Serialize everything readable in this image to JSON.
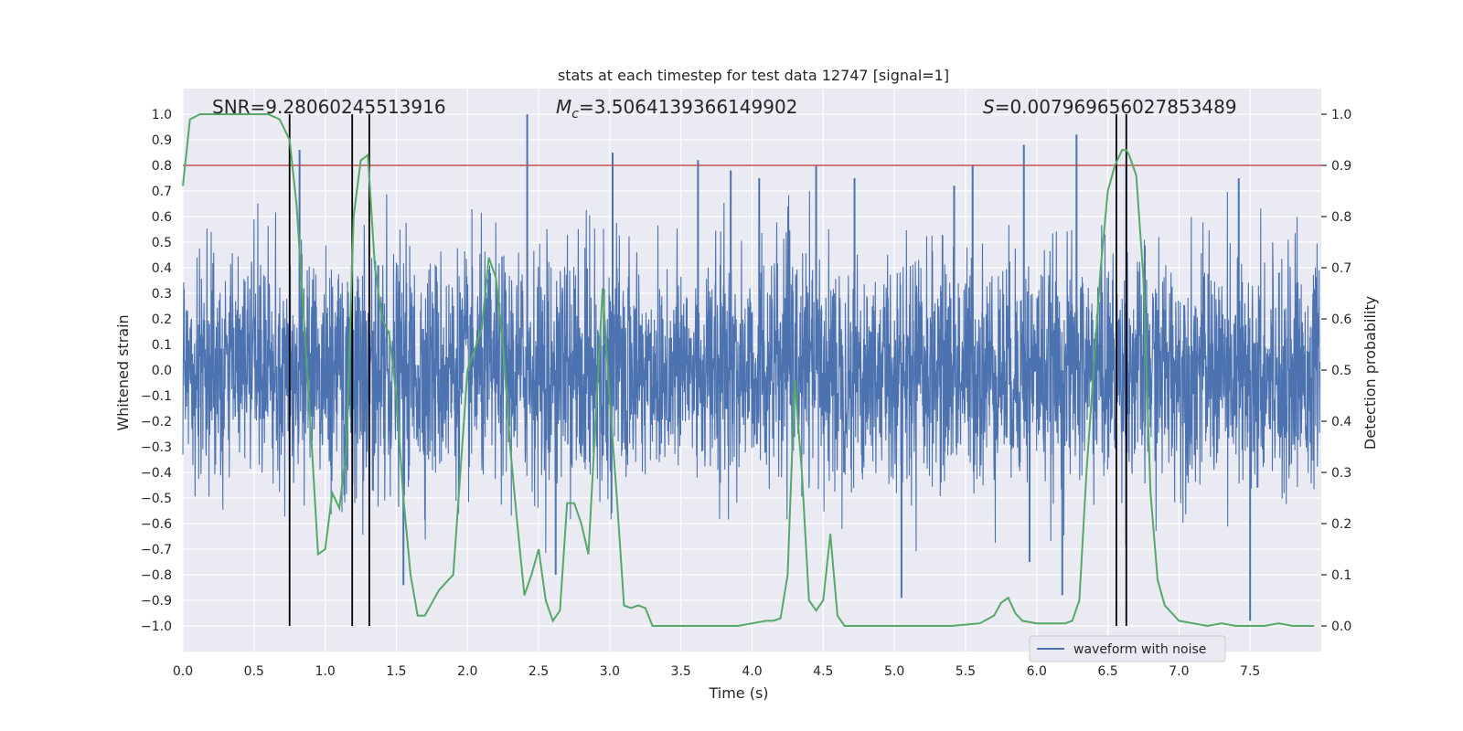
{
  "chart_data": {
    "type": "line",
    "title": "stats at each timestep for test data 12747 [signal=1]",
    "xlabel": "Time (s)",
    "ylabel": "Whitened strain",
    "y2label": "Detection probability",
    "xlim": [
      0.0,
      8.0
    ],
    "ylim": [
      -1.1,
      1.1
    ],
    "y2lim": [
      -0.05,
      1.05
    ],
    "xticks": [
      "0.0",
      "0.5",
      "1.0",
      "1.5",
      "2.0",
      "2.5",
      "3.0",
      "3.5",
      "4.0",
      "4.5",
      "5.0",
      "5.5",
      "6.0",
      "6.5",
      "7.0",
      "7.5"
    ],
    "yticks": [
      "1.0",
      "0.9",
      "0.8",
      "0.7",
      "0.6",
      "0.5",
      "0.4",
      "0.3",
      "0.2",
      "0.1",
      "0.0",
      "-0.1",
      "-0.2",
      "-0.3",
      "-0.4",
      "-0.5",
      "-0.6",
      "-0.7",
      "-0.8",
      "-0.9",
      "-1.0"
    ],
    "y2ticks": [
      "1.0",
      "0.9",
      "0.8",
      "0.7",
      "0.6",
      "0.5",
      "0.4",
      "0.3",
      "0.2",
      "0.1",
      "0.0"
    ],
    "grid": true,
    "legend": {
      "position": "bottom-right",
      "entries": [
        "waveform with noise"
      ]
    },
    "annotations": {
      "snr": "SNR=9.28060245513916",
      "mc_symbol": "M",
      "mc_sub": "c",
      "mc_value": "=3.5064139366149902",
      "s_symbol": "S",
      "s_value": "=0.007969656027853489"
    },
    "threshold": {
      "axis": "y2",
      "value": 0.9,
      "color": "#c44e52"
    },
    "vlines": [
      0.75,
      1.19,
      1.31,
      6.56,
      6.63
    ],
    "series": [
      {
        "name": "waveform with noise",
        "axis": "y",
        "color": "#4c72b0",
        "style": "dense-noise",
        "envelope_typical": 0.4,
        "peaks": [
          [
            0.82,
            0.86
          ],
          [
            1.55,
            -0.84
          ],
          [
            2.42,
            1.0
          ],
          [
            2.62,
            -0.8
          ],
          [
            3.02,
            0.85
          ],
          [
            3.62,
            0.82
          ],
          [
            3.85,
            0.78
          ],
          [
            4.05,
            0.75
          ],
          [
            4.45,
            0.8
          ],
          [
            4.72,
            0.75
          ],
          [
            5.05,
            -0.89
          ],
          [
            5.42,
            0.72
          ],
          [
            5.55,
            0.8
          ],
          [
            5.91,
            0.88
          ],
          [
            5.95,
            -0.75
          ],
          [
            6.18,
            -0.88
          ],
          [
            6.28,
            0.92
          ],
          [
            6.63,
            0.8
          ],
          [
            7.5,
            -0.98
          ],
          [
            7.42,
            0.75
          ]
        ]
      },
      {
        "name": "detection probability",
        "axis": "y2",
        "color": "#55a868",
        "x": [
          0.0,
          0.05,
          0.12,
          0.2,
          0.35,
          0.5,
          0.6,
          0.68,
          0.75,
          0.8,
          0.85,
          0.9,
          0.95,
          1.0,
          1.05,
          1.1,
          1.15,
          1.2,
          1.25,
          1.3,
          1.35,
          1.4,
          1.45,
          1.5,
          1.55,
          1.6,
          1.65,
          1.7,
          1.8,
          1.9,
          2.0,
          2.1,
          2.15,
          2.2,
          2.25,
          2.3,
          2.35,
          2.4,
          2.45,
          2.5,
          2.55,
          2.6,
          2.65,
          2.7,
          2.75,
          2.8,
          2.85,
          2.9,
          2.95,
          3.0,
          3.05,
          3.1,
          3.15,
          3.2,
          3.25,
          3.3,
          3.35,
          3.4,
          3.5,
          3.6,
          3.7,
          3.8,
          3.9,
          4.0,
          4.1,
          4.15,
          4.2,
          4.25,
          4.3,
          4.35,
          4.4,
          4.45,
          4.5,
          4.55,
          4.6,
          4.65,
          4.7,
          4.8,
          5.0,
          5.2,
          5.4,
          5.6,
          5.7,
          5.75,
          5.8,
          5.85,
          5.9,
          6.0,
          6.1,
          6.2,
          6.25,
          6.3,
          6.35,
          6.4,
          6.45,
          6.5,
          6.55,
          6.6,
          6.63,
          6.65,
          6.7,
          6.75,
          6.8,
          6.85,
          6.9,
          6.95,
          7.0,
          7.1,
          7.2,
          7.3,
          7.4,
          7.5,
          7.6,
          7.7,
          7.8,
          7.95
        ],
        "values": [
          0.86,
          0.99,
          1.0,
          1.0,
          1.0,
          1.0,
          1.0,
          0.99,
          0.95,
          0.82,
          0.6,
          0.38,
          0.14,
          0.15,
          0.26,
          0.23,
          0.35,
          0.8,
          0.91,
          0.92,
          0.7,
          0.6,
          0.57,
          0.45,
          0.25,
          0.1,
          0.02,
          0.02,
          0.07,
          0.1,
          0.5,
          0.58,
          0.72,
          0.68,
          0.55,
          0.35,
          0.2,
          0.06,
          0.1,
          0.15,
          0.05,
          0.01,
          0.03,
          0.24,
          0.24,
          0.2,
          0.14,
          0.4,
          0.66,
          0.44,
          0.25,
          0.04,
          0.035,
          0.04,
          0.035,
          0.0,
          0.0,
          0.0,
          0.0,
          0.0,
          0.0,
          0.0,
          0.0,
          0.005,
          0.01,
          0.01,
          0.015,
          0.1,
          0.48,
          0.3,
          0.05,
          0.03,
          0.05,
          0.18,
          0.02,
          0.0,
          0.0,
          0.0,
          0.0,
          0.0,
          0.0,
          0.005,
          0.02,
          0.045,
          0.055,
          0.025,
          0.01,
          0.005,
          0.005,
          0.005,
          0.01,
          0.05,
          0.3,
          0.5,
          0.7,
          0.85,
          0.9,
          0.93,
          0.93,
          0.92,
          0.88,
          0.68,
          0.26,
          0.09,
          0.04,
          0.025,
          0.01,
          0.005,
          0.0,
          0.005,
          0.0,
          0.0,
          0.0,
          0.005,
          0.0,
          0.0
        ]
      }
    ]
  }
}
